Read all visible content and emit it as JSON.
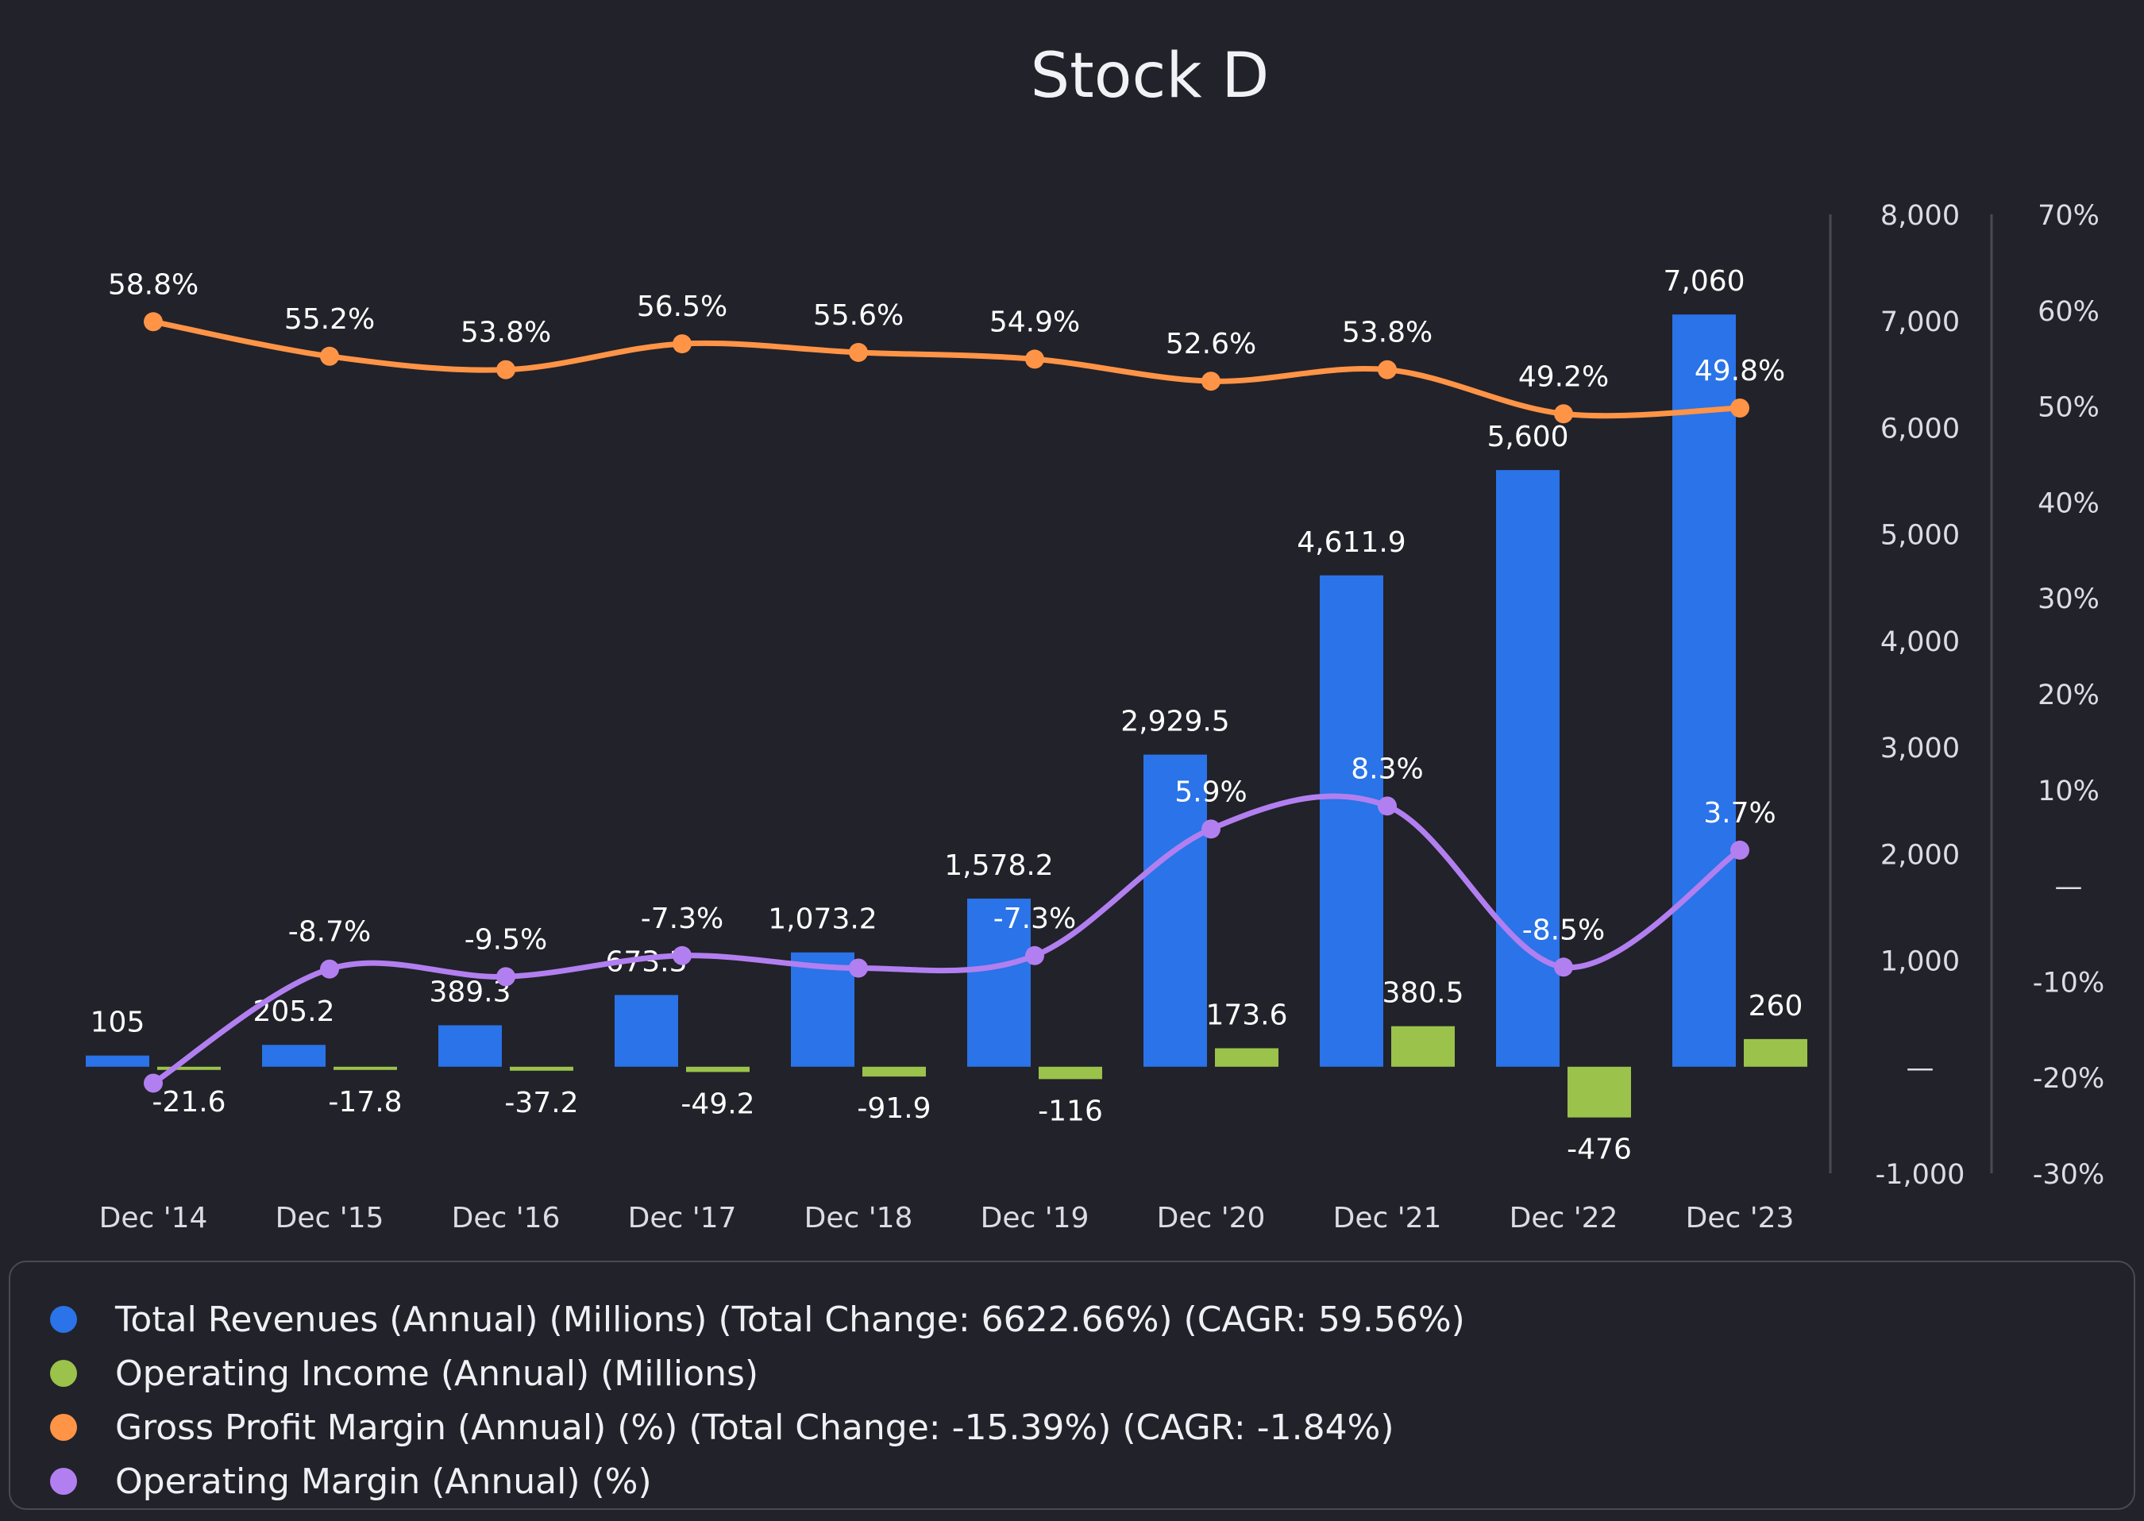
{
  "chart_data": {
    "type": "bar",
    "title": "Stock D",
    "categories": [
      "Dec '14",
      "Dec '15",
      "Dec '16",
      "Dec '17",
      "Dec '18",
      "Dec '19",
      "Dec '20",
      "Dec '21",
      "Dec '22",
      "Dec '23"
    ],
    "bar_series": [
      {
        "name": "Total Revenues (Annual) (Millions) (Total Change: 6622.66%) (CAGR: 59.56%)",
        "color": "#2a73e8",
        "values": [
          105,
          205.2,
          389.3,
          673.3,
          1073.2,
          1578.2,
          2929.5,
          4611.9,
          5600,
          7060
        ],
        "labels": [
          "105",
          "205.2",
          "389.3",
          "673.3",
          "1,073.2",
          "1,578.2",
          "2,929.5",
          "4,611.9",
          "5,600",
          "7,060"
        ]
      },
      {
        "name": "Operating Income (Annual) (Millions)",
        "color": "#9bc24a",
        "values": [
          -21.6,
          -17.8,
          -37.2,
          -49.2,
          -91.9,
          -116,
          173.6,
          380.5,
          -476,
          260
        ],
        "labels": [
          "-21.6",
          "-17.8",
          "-37.2",
          "-49.2",
          "-91.9",
          "-116",
          "173.6",
          "380.5",
          "-476",
          "260"
        ]
      }
    ],
    "line_series": [
      {
        "name": "Gross Profit Margin (Annual) (%) (Total Change: -15.39%) (CAGR: -1.84%)",
        "color": "#ff9447",
        "values": [
          58.8,
          55.2,
          53.8,
          56.5,
          55.6,
          54.9,
          52.6,
          53.8,
          49.2,
          49.8
        ],
        "labels": [
          "58.8%",
          "55.2%",
          "53.8%",
          "56.5%",
          "55.6%",
          "54.9%",
          "52.6%",
          "53.8%",
          "49.2%",
          "49.8%"
        ]
      },
      {
        "name": "Operating Margin (Annual) (%)",
        "color": "#b27ff0",
        "values": [
          -20.6,
          -8.7,
          -9.5,
          -7.3,
          -8.6,
          -7.3,
          5.9,
          8.3,
          -8.5,
          3.7
        ],
        "labels": [
          "",
          "-8.7%",
          "-9.5%",
          "-7.3%",
          "",
          "-7.3%",
          "5.9%",
          "8.3%",
          "-8.5%",
          "3.7%"
        ]
      }
    ],
    "y_left": {
      "range": [
        -1000,
        8000
      ],
      "ticks": [
        8000,
        7000,
        6000,
        5000,
        4000,
        3000,
        2000,
        1000,
        0,
        -1000
      ],
      "tick_labels": [
        "8,000",
        "7,000",
        "6,000",
        "5,000",
        "4,000",
        "3,000",
        "2,000",
        "1,000",
        "—",
        "-1,000"
      ]
    },
    "y_right": {
      "range": [
        -30,
        70
      ],
      "ticks": [
        70,
        60,
        50,
        40,
        30,
        20,
        10,
        0,
        -10,
        -20,
        -30
      ],
      "tick_labels": [
        "70%",
        "60%",
        "50%",
        "40%",
        "30%",
        "20%",
        "10%",
        "—",
        "-10%",
        "-20%",
        "-30%"
      ]
    },
    "legend_position": "bottom",
    "grid": false
  }
}
